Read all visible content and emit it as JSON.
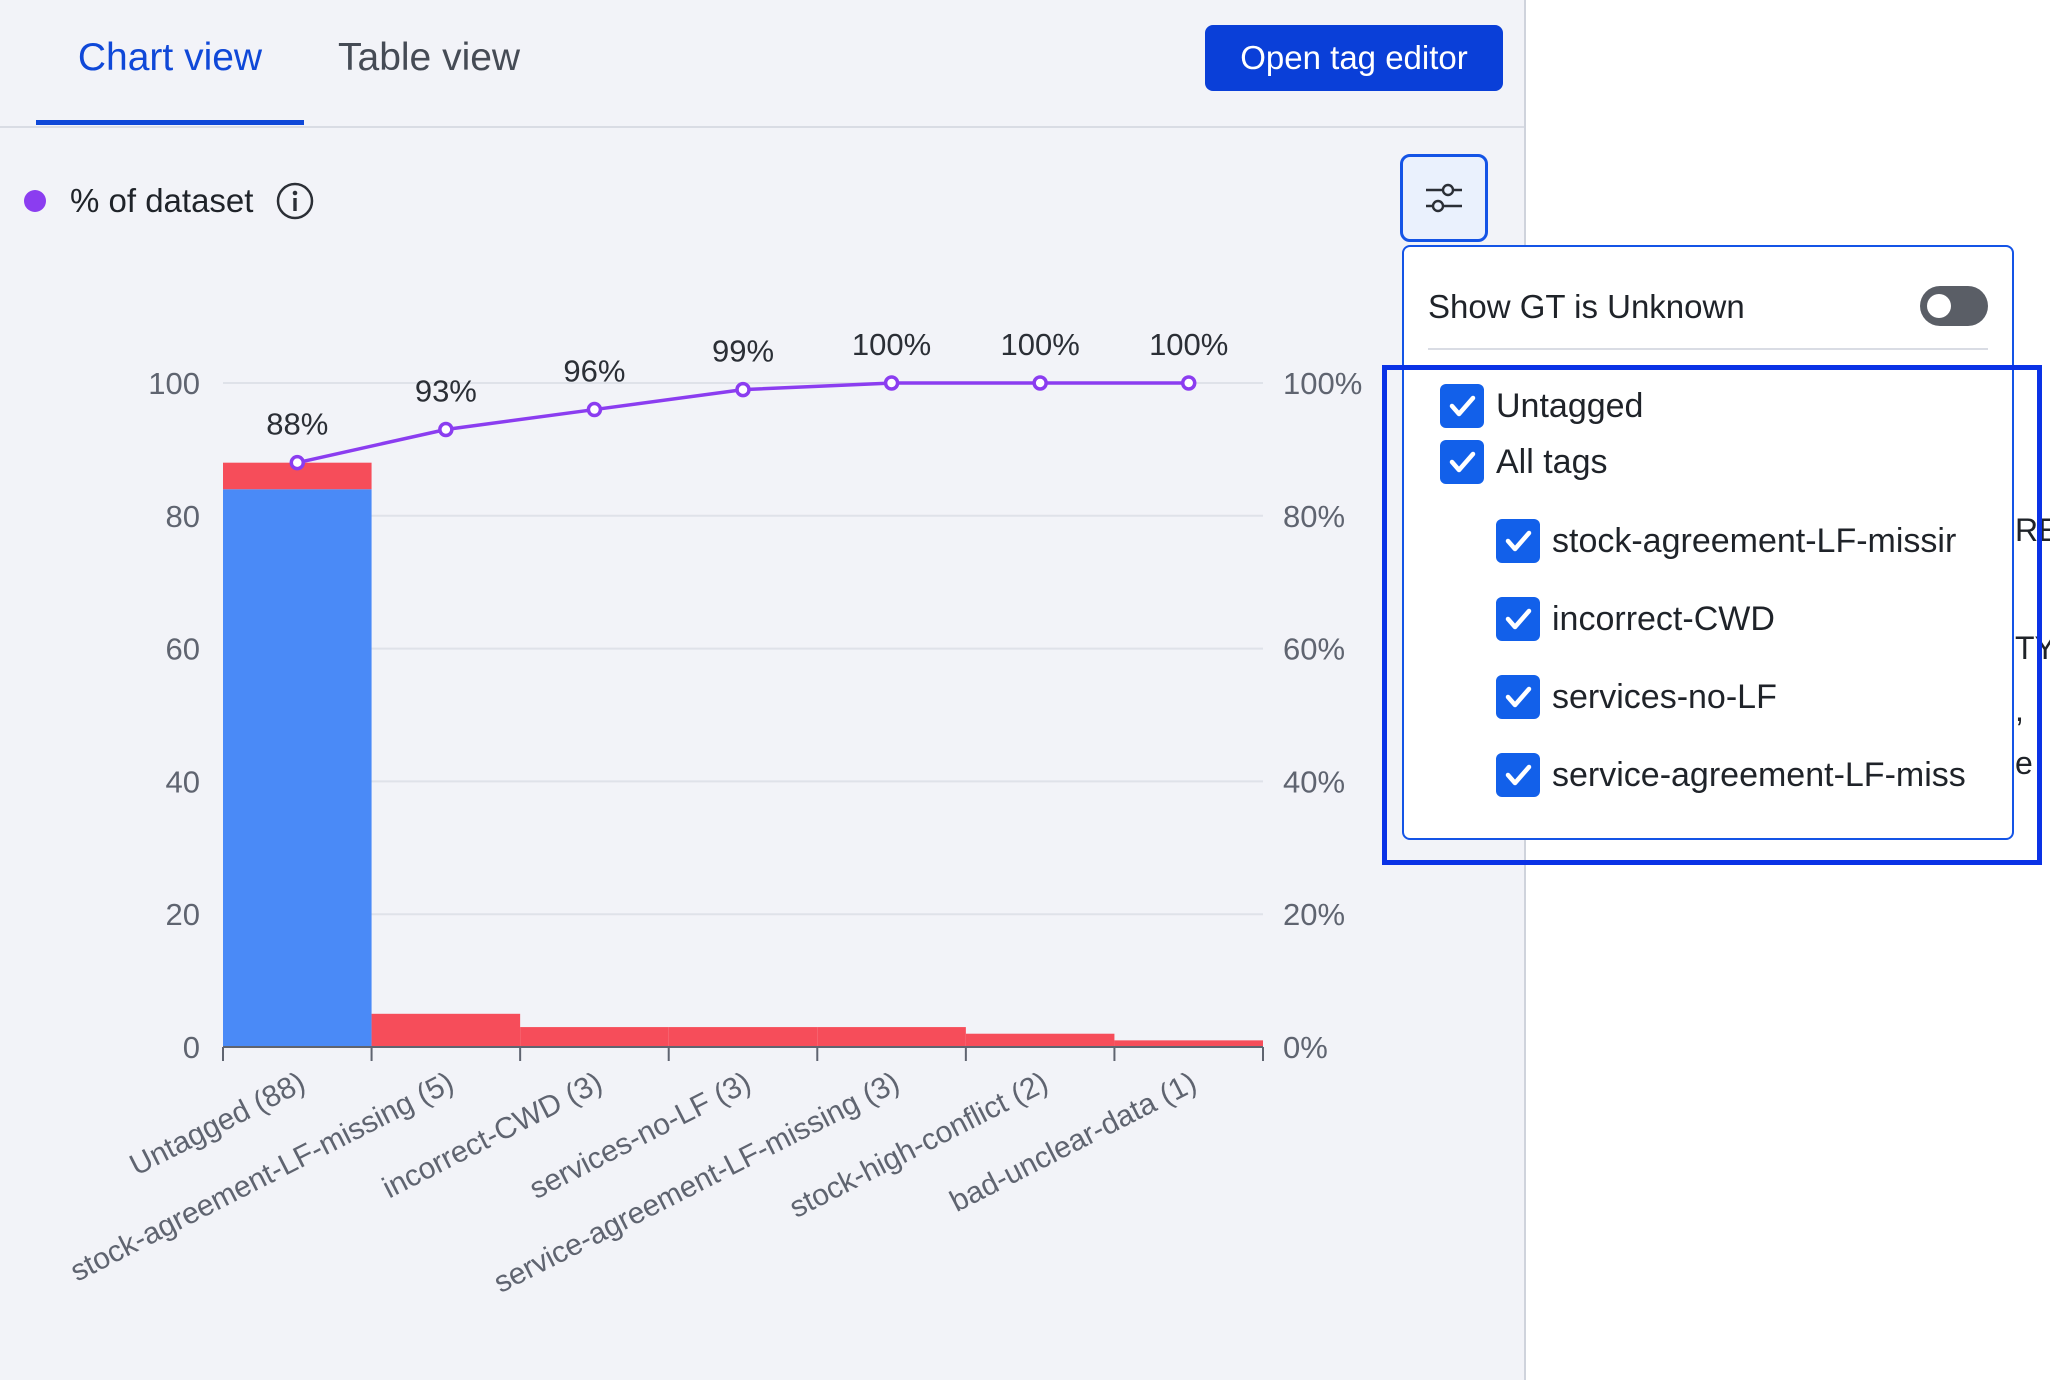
{
  "tabs": [
    {
      "label": "Chart view",
      "active": true
    },
    {
      "label": "Table view",
      "active": false
    }
  ],
  "open_tag_editor_label": "Open tag editor",
  "legend": {
    "label": "% of dataset",
    "color": "#8b3df0",
    "info_icon": "info-icon"
  },
  "settings_icon": "sliders-icon",
  "colors": {
    "blue": "#4a8af7",
    "red": "#f64d5a",
    "line": "#8b3df0",
    "accent": "#0f48d8"
  },
  "chart_data": {
    "type": "bar",
    "categories": [
      "Untagged (88)",
      "stock-agreement-LF-missing (5)",
      "incorrect-CWD (3)",
      "services-no-LF (3)",
      "service-agreement-LF-missing (3)",
      "stock-high-conflict (2)",
      "bad-unclear-data (1)"
    ],
    "series": [
      {
        "values": [
          84,
          0,
          0,
          0,
          0,
          0,
          0
        ],
        "color": "#4a8af7"
      },
      {
        "values": [
          4,
          5,
          3,
          3,
          3,
          2,
          1
        ],
        "color": "#f64d5a"
      }
    ],
    "cumulative_pct": [
      88,
      93,
      96,
      99,
      100,
      100,
      100
    ],
    "cumulative_labels": [
      "88%",
      "93%",
      "96%",
      "99%",
      "100%",
      "100%",
      "100%"
    ],
    "y_ticks": [
      "0",
      "20",
      "40",
      "60",
      "80",
      "100"
    ],
    "y2_ticks": [
      "0%",
      "20%",
      "40%",
      "60%",
      "80%",
      "100%"
    ],
    "ylim": [
      0,
      100
    ],
    "grid": true
  },
  "dropdown": {
    "gt_label": "Show GT is Unknown",
    "gt_enabled": false,
    "checks": [
      {
        "label": "Untagged",
        "checked": true,
        "indent": false
      },
      {
        "label": "All tags",
        "checked": true,
        "indent": false
      },
      {
        "label": "stock-agreement-LF-missir",
        "checked": true,
        "indent": true
      },
      {
        "label": "incorrect-CWD",
        "checked": true,
        "indent": true
      },
      {
        "label": "services-no-LF",
        "checked": true,
        "indent": true
      },
      {
        "label": "service-agreement-LF-miss",
        "checked": true,
        "indent": true
      }
    ]
  },
  "background_fragments": [
    "RE",
    "TY",
    ",",
    "e"
  ]
}
